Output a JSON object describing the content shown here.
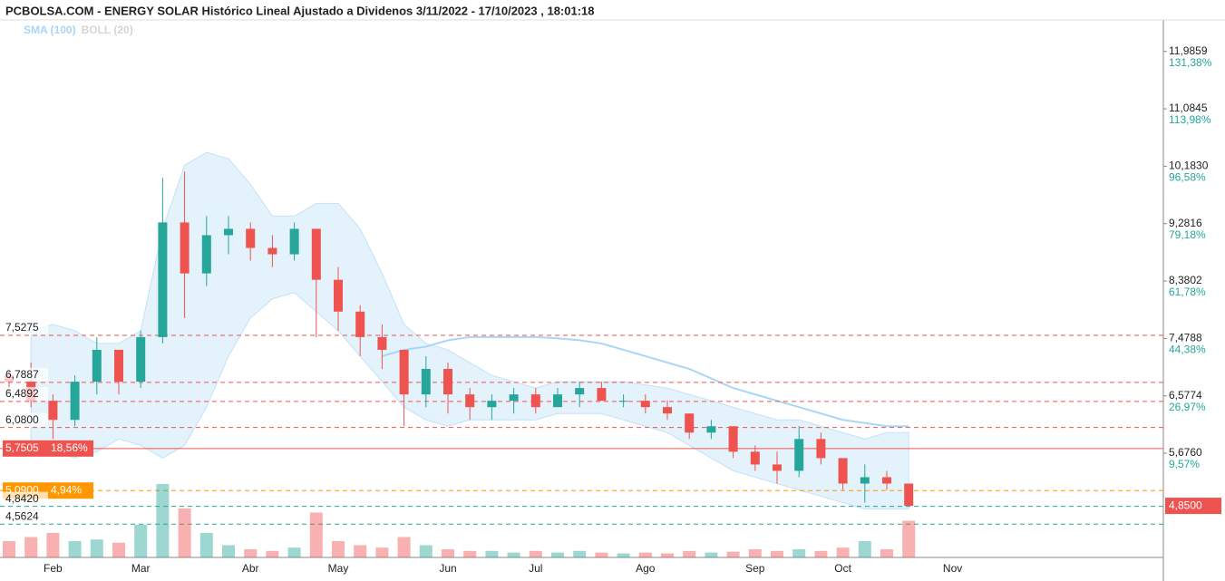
{
  "chart_data": {
    "type": "candlestick",
    "title": "PCBOLSA.COM - ENERGY SOLAR Histórico Lineal Ajustado a Dividenos 3/11/2022 - 17/10/2023 , 18:01:18",
    "legend": [
      {
        "name": "SMA (100)",
        "color": "#a9d6f5"
      },
      {
        "name": "BOLL (20)",
        "color": "#d5d5d5"
      }
    ],
    "categories": [
      null,
      null,
      "Feb",
      null,
      null,
      null,
      "Mar",
      null,
      null,
      null,
      null,
      "Abr",
      null,
      null,
      null,
      "May",
      null,
      null,
      null,
      null,
      "Jun",
      null,
      null,
      null,
      "Jul",
      null,
      null,
      null,
      null,
      "Ago",
      null,
      null,
      null,
      null,
      "Sep",
      null,
      null,
      null,
      "Oct",
      null,
      null,
      null,
      null,
      "Nov"
    ],
    "open": [
      6.9,
      6.8,
      6.5,
      6.2,
      6.8,
      7.3,
      6.8,
      7.5,
      9.3,
      8.5,
      9.1,
      9.2,
      8.9,
      8.8,
      9.2,
      8.4,
      7.9,
      7.5,
      7.3,
      6.6,
      7.0,
      6.6,
      6.4,
      6.5,
      6.6,
      6.4,
      6.6,
      6.7,
      6.5,
      6.5,
      6.4,
      6.3,
      6.0,
      6.1,
      5.7,
      5.5,
      5.4,
      5.9,
      5.6,
      5.2,
      5.3,
      5.2,
      null,
      null
    ],
    "high": [
      7.0,
      7.1,
      6.6,
      6.9,
      7.5,
      7.3,
      7.6,
      10.0,
      10.1,
      9.4,
      9.4,
      9.3,
      9.1,
      9.3,
      9.2,
      8.6,
      8.0,
      7.7,
      7.3,
      7.2,
      7.1,
      6.7,
      6.6,
      6.7,
      6.7,
      6.7,
      6.8,
      6.8,
      6.6,
      6.6,
      6.5,
      6.3,
      6.2,
      6.1,
      5.8,
      5.7,
      6.1,
      6.0,
      5.6,
      5.5,
      5.4,
      5.2,
      null,
      null
    ],
    "low": [
      6.7,
      6.4,
      5.9,
      6.1,
      6.6,
      6.6,
      6.7,
      7.4,
      7.8,
      8.3,
      8.8,
      8.7,
      8.6,
      8.7,
      7.5,
      7.6,
      7.2,
      7.0,
      6.1,
      6.4,
      6.3,
      6.2,
      6.2,
      6.3,
      6.3,
      6.4,
      6.4,
      6.5,
      6.4,
      6.3,
      6.2,
      5.9,
      5.9,
      5.6,
      5.4,
      5.2,
      5.3,
      5.5,
      5.1,
      4.9,
      5.1,
      4.85,
      null,
      null
    ],
    "close": [
      6.8,
      6.5,
      6.2,
      6.8,
      7.3,
      6.8,
      7.5,
      9.3,
      8.5,
      9.1,
      9.2,
      8.9,
      8.8,
      9.2,
      8.4,
      7.9,
      7.5,
      7.3,
      6.6,
      7.0,
      6.6,
      6.4,
      6.5,
      6.6,
      6.4,
      6.6,
      6.7,
      6.5,
      6.5,
      6.4,
      6.3,
      6.0,
      6.1,
      5.7,
      5.5,
      5.4,
      5.9,
      5.6,
      5.2,
      5.3,
      5.2,
      4.85,
      null,
      null
    ],
    "volume": [
      20,
      25,
      30,
      20,
      22,
      18,
      40,
      90,
      60,
      30,
      15,
      10,
      8,
      12,
      55,
      20,
      15,
      12,
      25,
      15,
      10,
      8,
      8,
      6,
      8,
      6,
      8,
      6,
      5,
      6,
      5,
      8,
      6,
      7,
      10,
      8,
      10,
      8,
      12,
      20,
      10,
      45,
      null,
      null
    ],
    "volume_ylim": [
      0,
      100
    ],
    "sma": [
      null,
      null,
      null,
      null,
      null,
      null,
      null,
      null,
      null,
      null,
      null,
      null,
      null,
      null,
      null,
      null,
      null,
      7.2,
      7.3,
      7.35,
      7.45,
      7.5,
      7.5,
      7.5,
      7.5,
      7.48,
      7.45,
      7.4,
      7.3,
      7.2,
      7.1,
      7.0,
      6.85,
      6.7,
      6.6,
      6.5,
      6.4,
      6.3,
      6.2,
      6.15,
      6.1,
      6.1,
      null,
      null
    ],
    "boll_upper": [
      null,
      7.6,
      7.7,
      7.6,
      7.4,
      7.4,
      7.6,
      9.2,
      10.2,
      10.4,
      10.3,
      9.9,
      9.4,
      9.4,
      9.6,
      9.6,
      9.2,
      8.5,
      7.7,
      7.4,
      7.3,
      7.1,
      6.9,
      6.8,
      6.7,
      6.8,
      6.8,
      6.8,
      6.8,
      6.75,
      6.7,
      6.6,
      6.5,
      6.4,
      6.3,
      6.2,
      6.2,
      6.1,
      6.0,
      5.9,
      6.0,
      6.0,
      null,
      null
    ],
    "boll_lower": [
      null,
      5.8,
      5.7,
      5.6,
      5.7,
      5.9,
      5.8,
      5.6,
      5.8,
      6.4,
      7.2,
      7.8,
      8.1,
      8.2,
      7.9,
      7.6,
      7.2,
      6.8,
      6.4,
      6.2,
      6.1,
      6.2,
      6.2,
      6.2,
      6.2,
      6.3,
      6.3,
      6.3,
      6.2,
      6.1,
      6.0,
      5.8,
      5.6,
      5.4,
      5.3,
      5.2,
      5.1,
      5.0,
      4.9,
      4.8,
      4.8,
      4.8,
      null,
      null
    ],
    "ylim": [
      4.04,
      12.48
    ],
    "yticks": [
      {
        "value": 11.9859,
        "label": "11,9859",
        "percent": "131,38%"
      },
      {
        "value": 11.0845,
        "label": "11,0845",
        "percent": "113,98%"
      },
      {
        "value": 10.183,
        "label": "10,1830",
        "percent": "96,58%"
      },
      {
        "value": 9.2816,
        "label": "9,2816",
        "percent": "79,18%"
      },
      {
        "value": 8.3802,
        "label": "8,3802",
        "percent": "61,78%"
      },
      {
        "value": 7.4788,
        "label": "7,4788",
        "percent": "44,38%"
      },
      {
        "value": 6.5774,
        "label": "6,5774",
        "percent": "26,97%"
      },
      {
        "value": 5.676,
        "label": "5,6760",
        "percent": "9,57%"
      }
    ],
    "levels": [
      {
        "value": 7.5275,
        "label": "7,5275",
        "color": "#ef5350",
        "style": "dashed"
      },
      {
        "value": 6.7887,
        "label": "6,7887",
        "color": "#ef5350",
        "style": "dashed"
      },
      {
        "value": 6.4892,
        "label": "6,4892",
        "color": "#ef5350",
        "style": "dashed"
      },
      {
        "value": 6.08,
        "label": "6,0800",
        "color": "#ef5350",
        "style": "dashed"
      },
      {
        "value": 5.7505,
        "label": "5,7505",
        "percent": "18,56%",
        "color": "#ef5350",
        "style": "solid"
      },
      {
        "value": 5.09,
        "label": "5,0900",
        "percent": "4,94%",
        "color": "#ff9800",
        "style": "dashed"
      },
      {
        "value": 4.842,
        "label": "4,8420",
        "color": "#26a69a",
        "style": "dashed"
      },
      {
        "value": 4.5624,
        "label": "4,5624",
        "color": "#26a69a",
        "style": "dashed"
      }
    ],
    "last_price": {
      "value": 4.85,
      "label": "4,8500"
    },
    "up_color": "#26a69a",
    "down_color": "#ef5350"
  }
}
